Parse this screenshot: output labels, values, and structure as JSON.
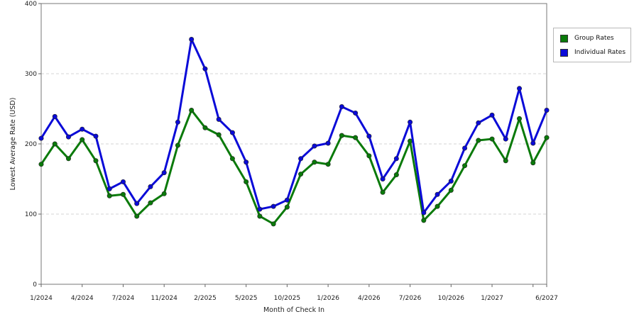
{
  "chart_data": {
    "type": "line",
    "xlabel": "Month of Check In",
    "ylabel": "Lowest Average Rate (USD)",
    "ylim": [
      0,
      400
    ],
    "yticks": [
      0,
      100,
      200,
      300,
      400
    ],
    "grid": true,
    "legend_position": "right",
    "x_tick_labels": [
      {
        "index": 0,
        "label": "1/2024"
      },
      {
        "index": 3,
        "label": "4/2024"
      },
      {
        "index": 6,
        "label": "7/2024"
      },
      {
        "index": 9,
        "label": "11/2024"
      },
      {
        "index": 12,
        "label": "2/2025"
      },
      {
        "index": 15,
        "label": "5/2025"
      },
      {
        "index": 18,
        "label": "10/2025"
      },
      {
        "index": 21,
        "label": "1/2026"
      },
      {
        "index": 24,
        "label": "4/2026"
      },
      {
        "index": 27,
        "label": "7/2026"
      },
      {
        "index": 30,
        "label": "10/2026"
      },
      {
        "index": 33,
        "label": "1/2027"
      },
      {
        "index": 37,
        "label": "6/2027"
      }
    ],
    "x_tick_marks": [
      0,
      3,
      6,
      9,
      12,
      15,
      18,
      21,
      24,
      27,
      30,
      33,
      36,
      37
    ],
    "point_count": 38,
    "series": [
      {
        "name": "Group Rates",
        "color": "#0a7a0a",
        "values": [
          171,
          200,
          179,
          206,
          176,
          126,
          128,
          97,
          116,
          129,
          198,
          248,
          223,
          213,
          179,
          146,
          97,
          86,
          110,
          157,
          174,
          171,
          212,
          209,
          183,
          131,
          156,
          204,
          91,
          111,
          134,
          169,
          205,
          207,
          176,
          236,
          173,
          209
        ]
      },
      {
        "name": "Individual Rates",
        "color": "#0a0ad8",
        "values": [
          208,
          239,
          210,
          221,
          211,
          136,
          146,
          115,
          139,
          159,
          231,
          349,
          307,
          235,
          216,
          174,
          107,
          111,
          120,
          179,
          197,
          201,
          253,
          244,
          211,
          150,
          179,
          231,
          102,
          128,
          147,
          194,
          230,
          241,
          207,
          279,
          201,
          248
        ]
      }
    ]
  }
}
